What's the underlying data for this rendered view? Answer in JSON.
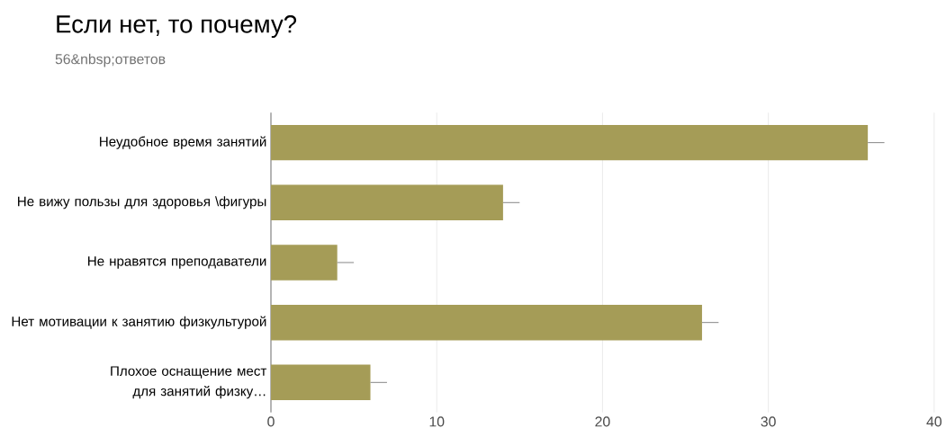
{
  "chart_data": {
    "type": "bar",
    "orientation": "horizontal",
    "title": "Если нет, то почему?",
    "subtitle": "56&nbsp;ответов",
    "categories": [
      "Неудобное время занятий",
      "Не вижу пользы для здоровья \\фигуры",
      "Не нравятся преподаватели",
      "Нет мотивации к занятию физкультурой",
      "Плохое оснащение мест для занятий физку…"
    ],
    "values": [
      36,
      14,
      4,
      26,
      6
    ],
    "errors": [
      [
        36,
        37
      ],
      [
        14,
        15
      ],
      [
        4,
        5
      ],
      [
        26,
        27
      ],
      [
        6,
        7
      ]
    ],
    "color": "#a59c57",
    "xlim": [
      0,
      40
    ],
    "xticks": [
      0,
      10,
      20,
      30,
      40
    ],
    "grid": "x"
  }
}
